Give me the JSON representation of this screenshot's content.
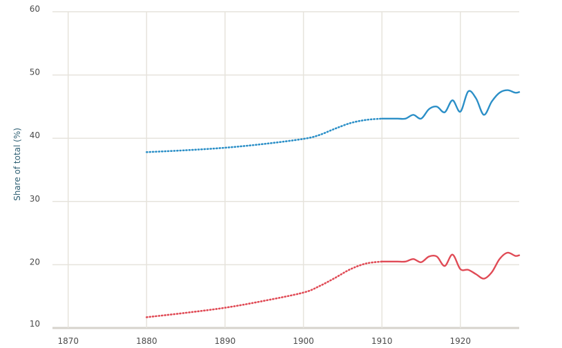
{
  "chart_data": {
    "type": "line",
    "title": "",
    "xlabel": "",
    "ylabel": "Share of total (%)",
    "xlim": [
      1868,
      1927.5
    ],
    "ylim": [
      10,
      60
    ],
    "xticks": [
      1870,
      1880,
      1890,
      1900,
      1910,
      1920
    ],
    "yticks": [
      10,
      20,
      30,
      40,
      50,
      60
    ],
    "grid": true,
    "legend": "none",
    "series": [
      {
        "color": "#2b8fc7",
        "estimated": {
          "x": [
            1880,
            1885,
            1890,
            1895,
            1900,
            1902,
            1904,
            1906,
            1908,
            1910
          ],
          "y": [
            37.8,
            38.1,
            38.5,
            39.1,
            39.9,
            40.5,
            41.5,
            42.4,
            42.9,
            43.1
          ]
        },
        "observed": {
          "x": [
            1910,
            1911,
            1912,
            1913,
            1914,
            1915,
            1916,
            1917,
            1918,
            1919,
            1920,
            1921,
            1922,
            1923,
            1924,
            1925,
            1926,
            1927,
            1927.5
          ],
          "y": [
            43.1,
            43.1,
            43.1,
            43.1,
            43.7,
            43.1,
            44.6,
            45.0,
            44.1,
            46.0,
            44.2,
            47.4,
            46.3,
            43.7,
            45.8,
            47.2,
            47.6,
            47.2,
            47.3
          ]
        }
      },
      {
        "color": "#e04a55",
        "estimated": {
          "x": [
            1880,
            1885,
            1890,
            1895,
            1900,
            1902,
            1904,
            1906,
            1908,
            1910
          ],
          "y": [
            11.7,
            12.4,
            13.2,
            14.3,
            15.6,
            16.6,
            17.9,
            19.3,
            20.2,
            20.5
          ]
        },
        "observed": {
          "x": [
            1910,
            1911,
            1912,
            1913,
            1914,
            1915,
            1916,
            1917,
            1918,
            1919,
            1920,
            1921,
            1922,
            1923,
            1924,
            1925,
            1926,
            1927,
            1927.5
          ],
          "y": [
            20.5,
            20.5,
            20.5,
            20.5,
            20.9,
            20.4,
            21.3,
            21.3,
            19.8,
            21.6,
            19.3,
            19.2,
            18.5,
            17.8,
            18.8,
            20.9,
            21.9,
            21.4,
            21.5
          ]
        }
      }
    ]
  }
}
